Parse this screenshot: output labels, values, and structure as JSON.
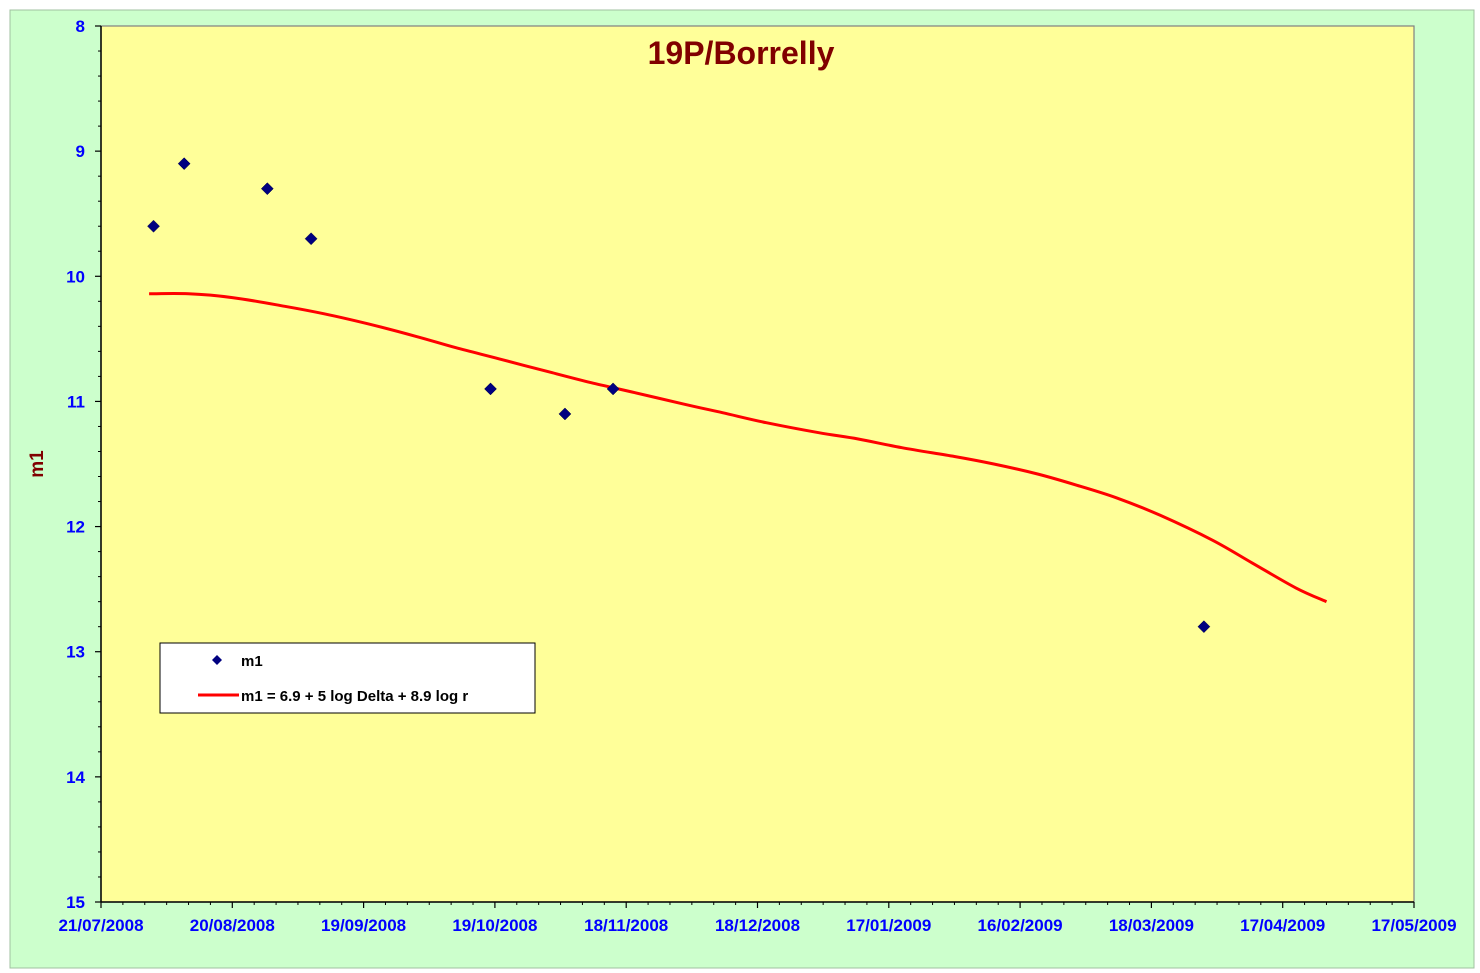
{
  "colors": {
    "outer_background": "#ccffcc",
    "plot_background": "#ffff99",
    "title": "#800000",
    "ylabel": "#800000",
    "tick_labels": "#0000ff",
    "markers": "#000080",
    "fit_line": "#ff0000",
    "axis": "#000000"
  },
  "chart_data": {
    "type": "scatter",
    "title": "19P/Borrelly",
    "xlabel": "",
    "ylabel": "m1",
    "x_is_date": true,
    "xlim": [
      "2008-07-21",
      "2009-05-17"
    ],
    "ylim": [
      8,
      15
    ],
    "y_inverted": true,
    "x_tick_labels": [
      "21/07/2008",
      "20/08/2008",
      "19/09/2008",
      "19/10/2008",
      "18/11/2008",
      "18/12/2008",
      "17/01/2009",
      "16/02/2009",
      "18/03/2009",
      "17/04/2009",
      "17/05/2009"
    ],
    "y_tick_labels": [
      "8",
      "9",
      "10",
      "11",
      "12",
      "13",
      "14",
      "15"
    ],
    "y_ticks": [
      8,
      9,
      10,
      11,
      12,
      13,
      14,
      15
    ],
    "grid": false,
    "legend_position": "bottom-left",
    "series": [
      {
        "name": "m1",
        "kind": "scatter",
        "marker": "diamond",
        "points": [
          {
            "x": "2008-08-02",
            "y": 9.6
          },
          {
            "x": "2008-08-09",
            "y": 9.1
          },
          {
            "x": "2008-08-28",
            "y": 9.3
          },
          {
            "x": "2008-09-07",
            "y": 9.7
          },
          {
            "x": "2008-10-18",
            "y": 10.9
          },
          {
            "x": "2008-11-04",
            "y": 11.1
          },
          {
            "x": "2008-11-15",
            "y": 10.9
          },
          {
            "x": "2009-03-30",
            "y": 12.8
          }
        ]
      },
      {
        "name": "m1 = 6.9 + 5 log Delta + 8.9 log r",
        "kind": "line",
        "points": [
          {
            "x": "2008-08-01",
            "y": 10.14
          },
          {
            "x": "2008-08-10",
            "y": 10.14
          },
          {
            "x": "2008-08-20",
            "y": 10.17
          },
          {
            "x": "2008-09-01",
            "y": 10.24
          },
          {
            "x": "2008-09-10",
            "y": 10.3
          },
          {
            "x": "2008-09-20",
            "y": 10.38
          },
          {
            "x": "2008-10-01",
            "y": 10.48
          },
          {
            "x": "2008-10-10",
            "y": 10.57
          },
          {
            "x": "2008-10-20",
            "y": 10.66
          },
          {
            "x": "2008-11-01",
            "y": 10.77
          },
          {
            "x": "2008-11-10",
            "y": 10.85
          },
          {
            "x": "2008-11-20",
            "y": 10.93
          },
          {
            "x": "2008-12-01",
            "y": 11.02
          },
          {
            "x": "2008-12-10",
            "y": 11.09
          },
          {
            "x": "2008-12-20",
            "y": 11.17
          },
          {
            "x": "2009-01-01",
            "y": 11.25
          },
          {
            "x": "2009-01-10",
            "y": 11.3
          },
          {
            "x": "2009-01-20",
            "y": 11.37
          },
          {
            "x": "2009-02-01",
            "y": 11.44
          },
          {
            "x": "2009-02-10",
            "y": 11.5
          },
          {
            "x": "2009-02-20",
            "y": 11.58
          },
          {
            "x": "2009-03-01",
            "y": 11.67
          },
          {
            "x": "2009-03-10",
            "y": 11.77
          },
          {
            "x": "2009-03-20",
            "y": 11.91
          },
          {
            "x": "2009-04-01",
            "y": 12.11
          },
          {
            "x": "2009-04-10",
            "y": 12.29
          },
          {
            "x": "2009-04-20",
            "y": 12.49
          },
          {
            "x": "2009-04-27",
            "y": 12.6
          }
        ]
      }
    ]
  }
}
